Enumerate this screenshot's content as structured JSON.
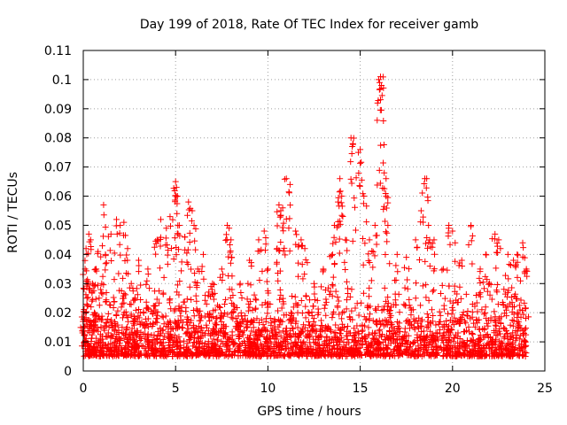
{
  "chart_data": {
    "type": "scatter",
    "title": "Day 199 of 2018, Rate Of TEC Index for receiver gamb",
    "xlabel": "GPS time / hours",
    "ylabel": "ROTI / TECUs",
    "xlim": [
      0,
      25
    ],
    "ylim": [
      0,
      0.11
    ],
    "xticks": [
      0,
      5,
      10,
      15,
      20,
      25
    ],
    "xtick_labels": [
      "0",
      "5",
      "10",
      "15",
      "20",
      "25"
    ],
    "yticks": [
      0,
      0.01,
      0.02,
      0.03,
      0.04,
      0.05,
      0.06,
      0.07,
      0.08,
      0.09,
      0.1,
      0.11
    ],
    "ytick_labels": [
      "0",
      "0.01",
      "0.02",
      "0.03",
      "0.04",
      "0.05",
      "0.06",
      "0.07",
      "0.08",
      "0.09",
      "0.1",
      "0.11"
    ],
    "grid": true,
    "marker": "+",
    "marker_color": "#ff0000",
    "series": [
      {
        "name": "ROTI",
        "x": [
          0.0,
          0.05,
          0.1,
          0.15,
          0.2,
          0.25,
          0.3,
          0.4,
          0.5,
          0.6,
          0.7,
          0.8,
          1.0,
          1.1,
          1.2,
          1.5,
          1.8,
          2.0,
          2.2,
          2.4,
          2.6,
          2.8,
          3.0,
          3.5,
          4.0,
          4.2,
          4.5,
          4.7,
          5.0,
          5.05,
          5.1,
          5.2,
          5.5,
          5.7,
          5.9,
          6.0,
          6.2,
          6.5,
          7.0,
          7.5,
          7.8,
          7.9,
          8.0,
          8.5,
          9.0,
          9.5,
          9.8,
          10.0,
          10.5,
          10.6,
          10.7,
          10.8,
          11.0,
          11.2,
          11.5,
          11.8,
          12.0,
          12.5,
          13.0,
          13.5,
          13.6,
          13.8,
          13.9,
          14.0,
          14.2,
          14.5,
          14.6,
          14.9,
          15.0,
          15.2,
          15.5,
          15.8,
          16.0,
          16.05,
          16.1,
          16.15,
          16.3,
          16.4,
          16.5,
          17.0,
          17.5,
          18.0,
          18.3,
          18.5,
          18.6,
          18.7,
          19.0,
          19.5,
          19.8,
          20.0,
          20.5,
          21.0,
          21.5,
          21.8,
          22.0,
          22.3,
          22.5,
          23.0,
          23.3,
          23.5,
          23.8,
          24.0
        ],
        "y": [
          0.015,
          0.02,
          0.035,
          0.042,
          0.025,
          0.03,
          0.047,
          0.045,
          0.03,
          0.02,
          0.035,
          0.041,
          0.03,
          0.057,
          0.04,
          0.047,
          0.052,
          0.05,
          0.051,
          0.042,
          0.03,
          0.025,
          0.038,
          0.035,
          0.045,
          0.052,
          0.049,
          0.053,
          0.065,
          0.063,
          0.06,
          0.05,
          0.046,
          0.058,
          0.055,
          0.05,
          0.035,
          0.04,
          0.03,
          0.035,
          0.05,
          0.049,
          0.045,
          0.03,
          0.038,
          0.045,
          0.048,
          0.035,
          0.042,
          0.057,
          0.055,
          0.056,
          0.066,
          0.064,
          0.048,
          0.045,
          0.042,
          0.03,
          0.035,
          0.04,
          0.05,
          0.058,
          0.066,
          0.06,
          0.045,
          0.08,
          0.078,
          0.075,
          0.076,
          0.06,
          0.045,
          0.05,
          0.1,
          0.099,
          0.101,
          0.098,
          0.068,
          0.066,
          0.05,
          0.04,
          0.039,
          0.045,
          0.055,
          0.066,
          0.066,
          0.05,
          0.045,
          0.035,
          0.05,
          0.048,
          0.038,
          0.05,
          0.035,
          0.04,
          0.03,
          0.047,
          0.045,
          0.04,
          0.038,
          0.04,
          0.044,
          0.035
        ]
      }
    ],
    "dense_band": {
      "x_range": [
        0,
        24
      ],
      "y_range": [
        0.005,
        0.03
      ]
    }
  }
}
